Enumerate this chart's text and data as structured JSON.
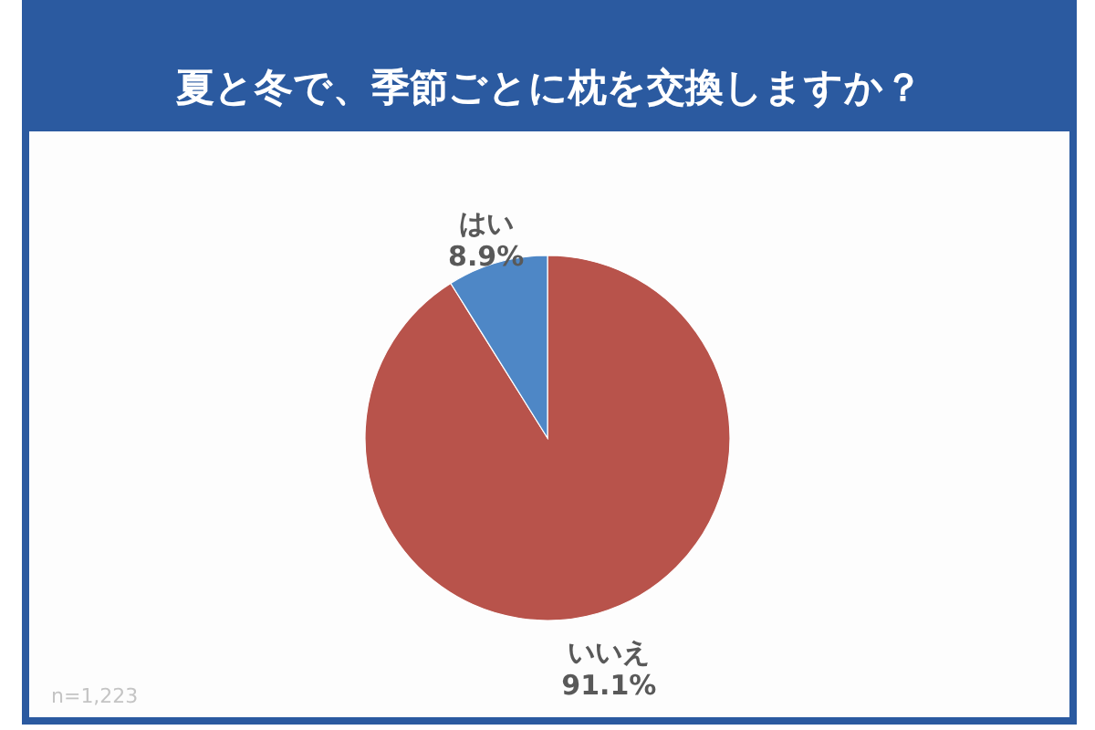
{
  "chart_data": {
    "type": "pie",
    "title": "夏と冬で、季節ごとに枕を交換しますか？",
    "categories": [
      "いいえ",
      "はい"
    ],
    "values": [
      91.1,
      8.9
    ],
    "colors": [
      "#b8534b",
      "#4e87c6"
    ],
    "value_labels": [
      "91.1%",
      "8.9%"
    ],
    "annotations": [
      "n=1,223"
    ]
  }
}
